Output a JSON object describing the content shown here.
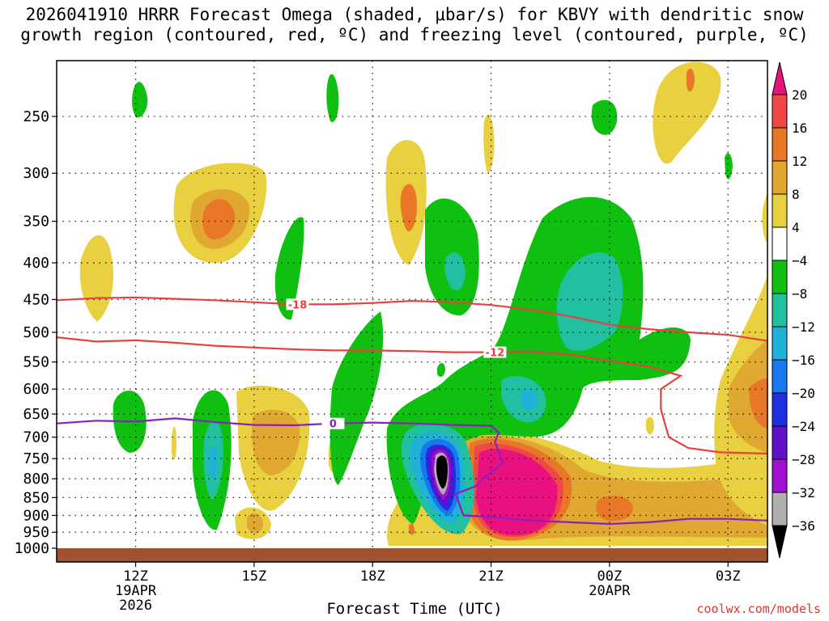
{
  "title": {
    "line1": "2026041910 HRRR Forecast Omega (shaded, μbar/s) for KBVY with dendritic snow",
    "line2": "growth region (contoured, red, ºC) and freezing level (contoured, purple, ºC)"
  },
  "credit": "coolwx.com/models",
  "chart_data": {
    "type": "heatmap",
    "title": "2026041910 HRRR Forecast Omega (shaded, μbar/s) for KBVY with dendritic snow growth region (contoured, red, ºC) and freezing level (contoured, purple, ºC)",
    "xlabel": "Forecast Time (UTC)",
    "ylabel": "",
    "y_scale": "log-pressure",
    "ylim": [
      1000,
      200
    ],
    "x_ticks": [
      {
        "label": "12Z",
        "sub1": "19APR",
        "sub2": "2026",
        "hour": 12
      },
      {
        "label": "15Z",
        "sub1": "",
        "sub2": "",
        "hour": 15
      },
      {
        "label": "18Z",
        "sub1": "",
        "sub2": "",
        "hour": 18
      },
      {
        "label": "21Z",
        "sub1": "",
        "sub2": "",
        "hour": 21
      },
      {
        "label": "00Z",
        "sub1": "20APR",
        "sub2": "",
        "hour": 24
      },
      {
        "label": "03Z",
        "sub1": "",
        "sub2": "",
        "hour": 27
      }
    ],
    "x_range_hours": [
      10,
      28
    ],
    "y_ticks": [
      250,
      300,
      350,
      400,
      450,
      500,
      550,
      600,
      650,
      700,
      750,
      800,
      850,
      900,
      950,
      1000
    ],
    "grid": true,
    "colorbar": {
      "labels": [
        "20",
        "16",
        "12",
        "8",
        "4",
        "−4",
        "−8",
        "−12",
        "−16",
        "−20",
        "−24",
        "−28",
        "−32",
        "−36"
      ],
      "levels": [
        20,
        16,
        12,
        8,
        4,
        -4,
        -8,
        -12,
        -16,
        -20,
        -24,
        -28,
        -32,
        -36
      ],
      "colors": [
        "#e8117f",
        "#f04848",
        "#e87828",
        "#e0a830",
        "#e8d040",
        "#ffffff",
        "#10c010",
        "#20c0a0",
        "#20b0d8",
        "#1878f0",
        "#2030e0",
        "#6010c8",
        "#a010d0",
        "#b0b0b0",
        "#000000"
      ]
    },
    "contours": [
      {
        "name": "-18",
        "color": "#e84040",
        "label_pos_hour": 16.1,
        "points": [
          [
            10,
            451
          ],
          [
            11,
            448
          ],
          [
            12,
            447
          ],
          [
            13,
            449
          ],
          [
            14,
            451
          ],
          [
            15,
            454
          ],
          [
            16,
            457
          ],
          [
            17,
            457
          ],
          [
            18,
            455
          ],
          [
            19,
            452
          ],
          [
            20,
            454
          ],
          [
            21,
            458
          ],
          [
            22,
            465
          ],
          [
            23,
            475
          ],
          [
            24,
            488
          ],
          [
            25,
            495
          ],
          [
            26,
            500
          ],
          [
            27,
            504
          ],
          [
            28,
            514
          ]
        ]
      },
      {
        "name": "-12",
        "color": "#e84040",
        "label_pos_hour": 21.1,
        "points": [
          [
            10,
            508
          ],
          [
            11,
            515
          ],
          [
            12,
            513
          ],
          [
            13,
            517
          ],
          [
            14,
            522
          ],
          [
            15,
            525
          ],
          [
            16,
            528
          ],
          [
            17,
            530
          ],
          [
            18,
            530
          ],
          [
            19,
            531
          ],
          [
            20,
            533
          ],
          [
            21,
            533
          ],
          [
            22,
            532
          ],
          [
            23,
            537
          ],
          [
            24,
            548
          ],
          [
            25,
            558
          ],
          [
            25.8,
            575
          ],
          [
            25.3,
            600
          ],
          [
            25.3,
            640
          ],
          [
            25.5,
            700
          ],
          [
            26,
            725
          ],
          [
            26.8,
            735
          ],
          [
            28,
            738
          ]
        ]
      },
      {
        "name": "0",
        "color": "#8d1ec0",
        "label_pos_hour": 17.0,
        "points": [
          [
            10,
            670
          ],
          [
            11,
            664
          ],
          [
            12,
            666
          ],
          [
            13,
            659
          ],
          [
            14,
            667
          ],
          [
            15,
            673
          ],
          [
            16,
            674
          ],
          [
            17,
            670
          ],
          [
            18,
            668
          ],
          [
            19,
            670
          ],
          [
            20,
            673
          ],
          [
            21,
            675
          ],
          [
            21.2,
            690
          ],
          [
            21.1,
            710
          ],
          [
            21.3,
            760
          ],
          [
            20.8,
            800
          ],
          [
            20.6,
            820
          ],
          [
            20.1,
            840
          ],
          [
            20.3,
            900
          ],
          [
            21,
            905
          ],
          [
            22,
            915
          ],
          [
            23,
            920
          ],
          [
            24,
            925
          ],
          [
            25,
            920
          ],
          [
            26,
            910
          ],
          [
            27,
            910
          ],
          [
            28,
            915
          ]
        ]
      }
    ],
    "freezing_level_label": "0",
    "dgz_labels": [
      "-18",
      "-12"
    ]
  }
}
